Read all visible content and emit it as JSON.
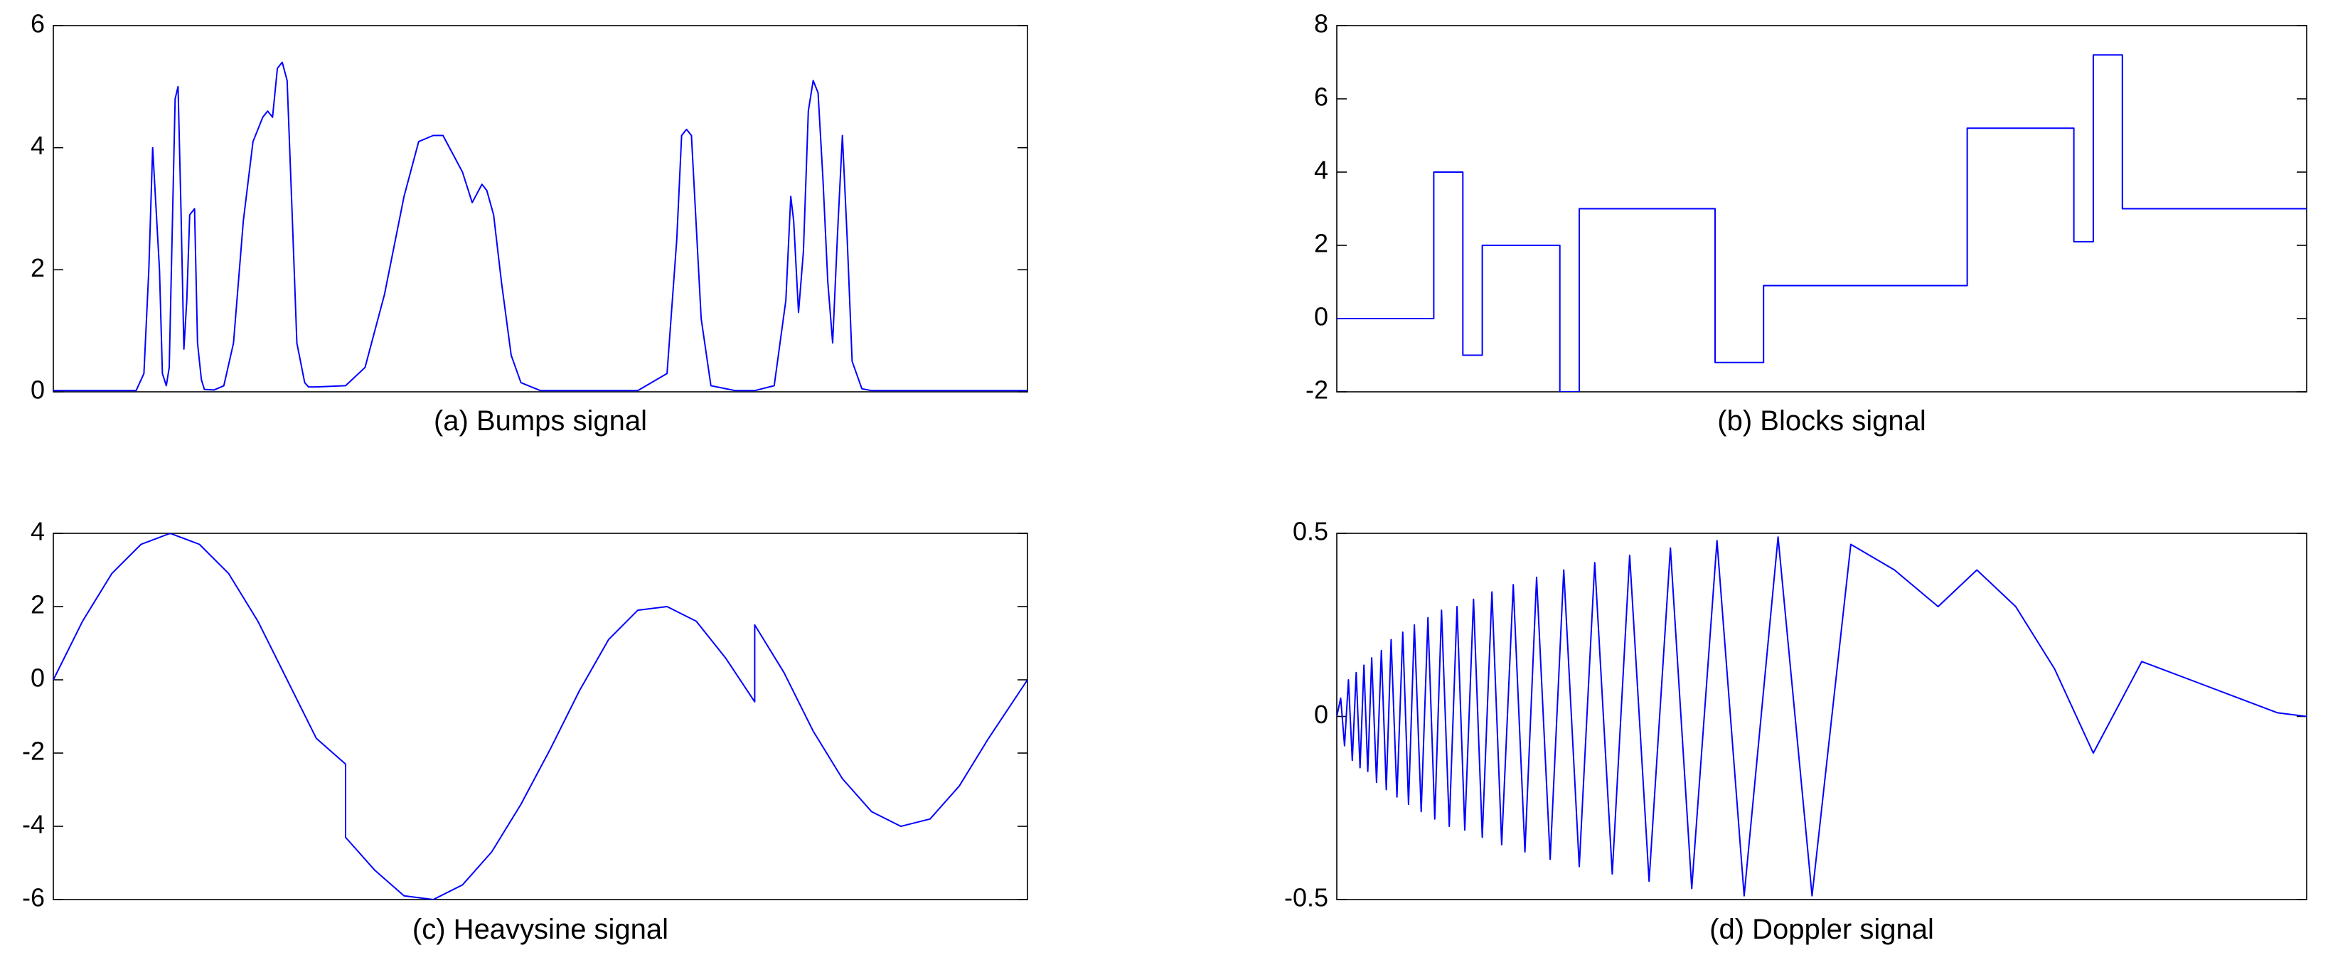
{
  "colors": {
    "line": "#0000ff",
    "axes": "#000000",
    "background": "#ffffff"
  },
  "chart_data": [
    {
      "id": "bumps",
      "type": "line",
      "caption": "(a) Bumps signal",
      "title": "",
      "xlabel": "",
      "ylabel": "",
      "xlim": [
        0,
        1
      ],
      "ylim": [
        0,
        6
      ],
      "yticks": [
        0,
        2,
        4,
        6
      ],
      "ytick_labels": [
        "0",
        "2",
        "4",
        "6"
      ],
      "grid": false,
      "series": [
        {
          "x": [
            0,
            0.085,
            0.093,
            0.098,
            0.102,
            0.109,
            0.112,
            0.116,
            0.119,
            0.125,
            0.128,
            0.131,
            0.134,
            0.137,
            0.14,
            0.145,
            0.148,
            0.152,
            0.155,
            0.165,
            0.175,
            0.185,
            0.195,
            0.205,
            0.215,
            0.22,
            0.225,
            0.23,
            0.235,
            0.24,
            0.245,
            0.25,
            0.258,
            0.262,
            0.27,
            0.3,
            0.32,
            0.34,
            0.36,
            0.375,
            0.39,
            0.4,
            0.42,
            0.43,
            0.44,
            0.445,
            0.452,
            0.46,
            0.47,
            0.48,
            0.5,
            0.6,
            0.63,
            0.64,
            0.645,
            0.65,
            0.655,
            0.665,
            0.675,
            0.7,
            0.72,
            0.74,
            0.752,
            0.757,
            0.76,
            0.765,
            0.77,
            0.775,
            0.78,
            0.785,
            0.79,
            0.795,
            0.8,
            0.805,
            0.81,
            0.815,
            0.82,
            0.83,
            0.84,
            1.0
          ],
          "y": [
            0.02,
            0.02,
            0.3,
            2.0,
            4.0,
            2.0,
            0.3,
            0.1,
            0.4,
            4.8,
            5.0,
            3.0,
            0.7,
            1.5,
            2.9,
            3.0,
            0.8,
            0.2,
            0.04,
            0.03,
            0.1,
            0.8,
            2.8,
            4.1,
            4.5,
            4.6,
            4.5,
            5.3,
            5.4,
            5.1,
            3.0,
            0.8,
            0.15,
            0.08,
            0.08,
            0.1,
            0.4,
            1.6,
            3.2,
            4.1,
            4.2,
            4.2,
            3.6,
            3.1,
            3.4,
            3.3,
            2.9,
            1.8,
            0.6,
            0.15,
            0.02,
            0.02,
            0.3,
            2.5,
            4.2,
            4.3,
            4.2,
            1.2,
            0.1,
            0.02,
            0.02,
            0.1,
            1.5,
            3.2,
            2.8,
            1.3,
            2.3,
            4.6,
            5.1,
            4.9,
            3.5,
            1.8,
            0.8,
            2.6,
            4.2,
            2.5,
            0.5,
            0.05,
            0.02,
            0.02
          ]
        }
      ]
    },
    {
      "id": "blocks",
      "type": "line",
      "caption": "(b) Blocks signal",
      "title": "",
      "xlabel": "",
      "ylabel": "",
      "xlim": [
        0,
        1
      ],
      "ylim": [
        -2,
        8
      ],
      "yticks": [
        -2,
        0,
        2,
        4,
        6,
        8
      ],
      "ytick_labels": [
        "-2",
        "0",
        "2",
        "4",
        "6",
        "8"
      ],
      "grid": false,
      "series": [
        {
          "x": [
            0,
            0.1,
            0.1,
            0.13,
            0.13,
            0.15,
            0.15,
            0.23,
            0.23,
            0.25,
            0.25,
            0.39,
            0.39,
            0.44,
            0.44,
            0.65,
            0.65,
            0.76,
            0.76,
            0.78,
            0.78,
            0.81,
            0.81,
            1.0
          ],
          "y": [
            0,
            0,
            4,
            4,
            -1,
            -1,
            2,
            2,
            -2,
            -2,
            3,
            3,
            -1.2,
            -1.2,
            0.9,
            0.9,
            5.2,
            5.2,
            2.1,
            2.1,
            7.2,
            7.2,
            3.0,
            3.0
          ]
        }
      ]
    },
    {
      "id": "heavysine",
      "type": "line",
      "caption": "(c) Heavysine signal",
      "title": "",
      "xlabel": "",
      "ylabel": "",
      "xlim": [
        0,
        1
      ],
      "ylim": [
        -6,
        4
      ],
      "yticks": [
        -6,
        -4,
        -2,
        0,
        2,
        4
      ],
      "ytick_labels": [
        "-6",
        "-4",
        "-2",
        "0",
        "2",
        "4"
      ],
      "grid": false,
      "series": [
        {
          "x": [
            0,
            0.03,
            0.06,
            0.09,
            0.12,
            0.15,
            0.18,
            0.21,
            0.24,
            0.27,
            0.3,
            0.3,
            0.33,
            0.36,
            0.39,
            0.42,
            0.45,
            0.48,
            0.51,
            0.54,
            0.57,
            0.6,
            0.63,
            0.66,
            0.69,
            0.72,
            0.72,
            0.75,
            0.78,
            0.81,
            0.84,
            0.87,
            0.9,
            0.93,
            0.96,
            1.0
          ],
          "y": [
            0,
            1.6,
            2.9,
            3.7,
            4.0,
            3.7,
            2.9,
            1.6,
            0.0,
            -1.6,
            -2.3,
            -4.3,
            -5.2,
            -5.9,
            -6.0,
            -5.6,
            -4.7,
            -3.4,
            -1.9,
            -0.3,
            1.1,
            1.9,
            2.0,
            1.6,
            0.6,
            -0.6,
            1.5,
            0.2,
            -1.4,
            -2.7,
            -3.6,
            -4.0,
            -3.8,
            -2.9,
            -1.6,
            0.0
          ]
        }
      ]
    },
    {
      "id": "doppler",
      "type": "line",
      "caption": "(d) Doppler signal",
      "title": "",
      "xlabel": "",
      "ylabel": "",
      "xlim": [
        0,
        1
      ],
      "ylim": [
        -0.5,
        0.5
      ],
      "yticks": [
        -0.5,
        0,
        0.5
      ],
      "ytick_labels": [
        "-0.5",
        "0",
        "0.5"
      ],
      "grid": false,
      "series": [
        {
          "x": [
            0,
            0.004,
            0.008,
            0.012,
            0.016,
            0.02,
            0.024,
            0.028,
            0.032,
            0.036,
            0.041,
            0.046,
            0.051,
            0.056,
            0.062,
            0.068,
            0.074,
            0.08,
            0.087,
            0.094,
            0.101,
            0.108,
            0.116,
            0.124,
            0.132,
            0.141,
            0.15,
            0.16,
            0.17,
            0.182,
            0.194,
            0.206,
            0.22,
            0.234,
            0.25,
            0.266,
            0.284,
            0.302,
            0.322,
            0.344,
            0.366,
            0.392,
            0.42,
            0.455,
            0.49,
            0.53,
            0.575,
            0.62,
            0.66,
            0.7,
            0.74,
            0.78,
            0.83,
            0.88,
            0.93,
            0.97,
            1.0
          ],
          "y": [
            0,
            0.05,
            -0.08,
            0.1,
            -0.12,
            0.12,
            -0.14,
            0.14,
            -0.15,
            0.16,
            -0.18,
            0.18,
            -0.2,
            0.21,
            -0.22,
            0.23,
            -0.24,
            0.25,
            -0.26,
            0.27,
            -0.28,
            0.29,
            -0.3,
            0.3,
            -0.31,
            0.32,
            -0.33,
            0.34,
            -0.35,
            0.36,
            -0.37,
            0.38,
            -0.39,
            0.4,
            -0.41,
            0.42,
            -0.43,
            0.44,
            -0.45,
            0.46,
            -0.47,
            0.48,
            -0.49,
            0.49,
            -0.49,
            0.47,
            0.4,
            0.3,
            0.4,
            0.3,
            0.13,
            -0.1,
            0.15,
            0.1,
            0.05,
            0.01,
            0
          ]
        }
      ]
    }
  ]
}
